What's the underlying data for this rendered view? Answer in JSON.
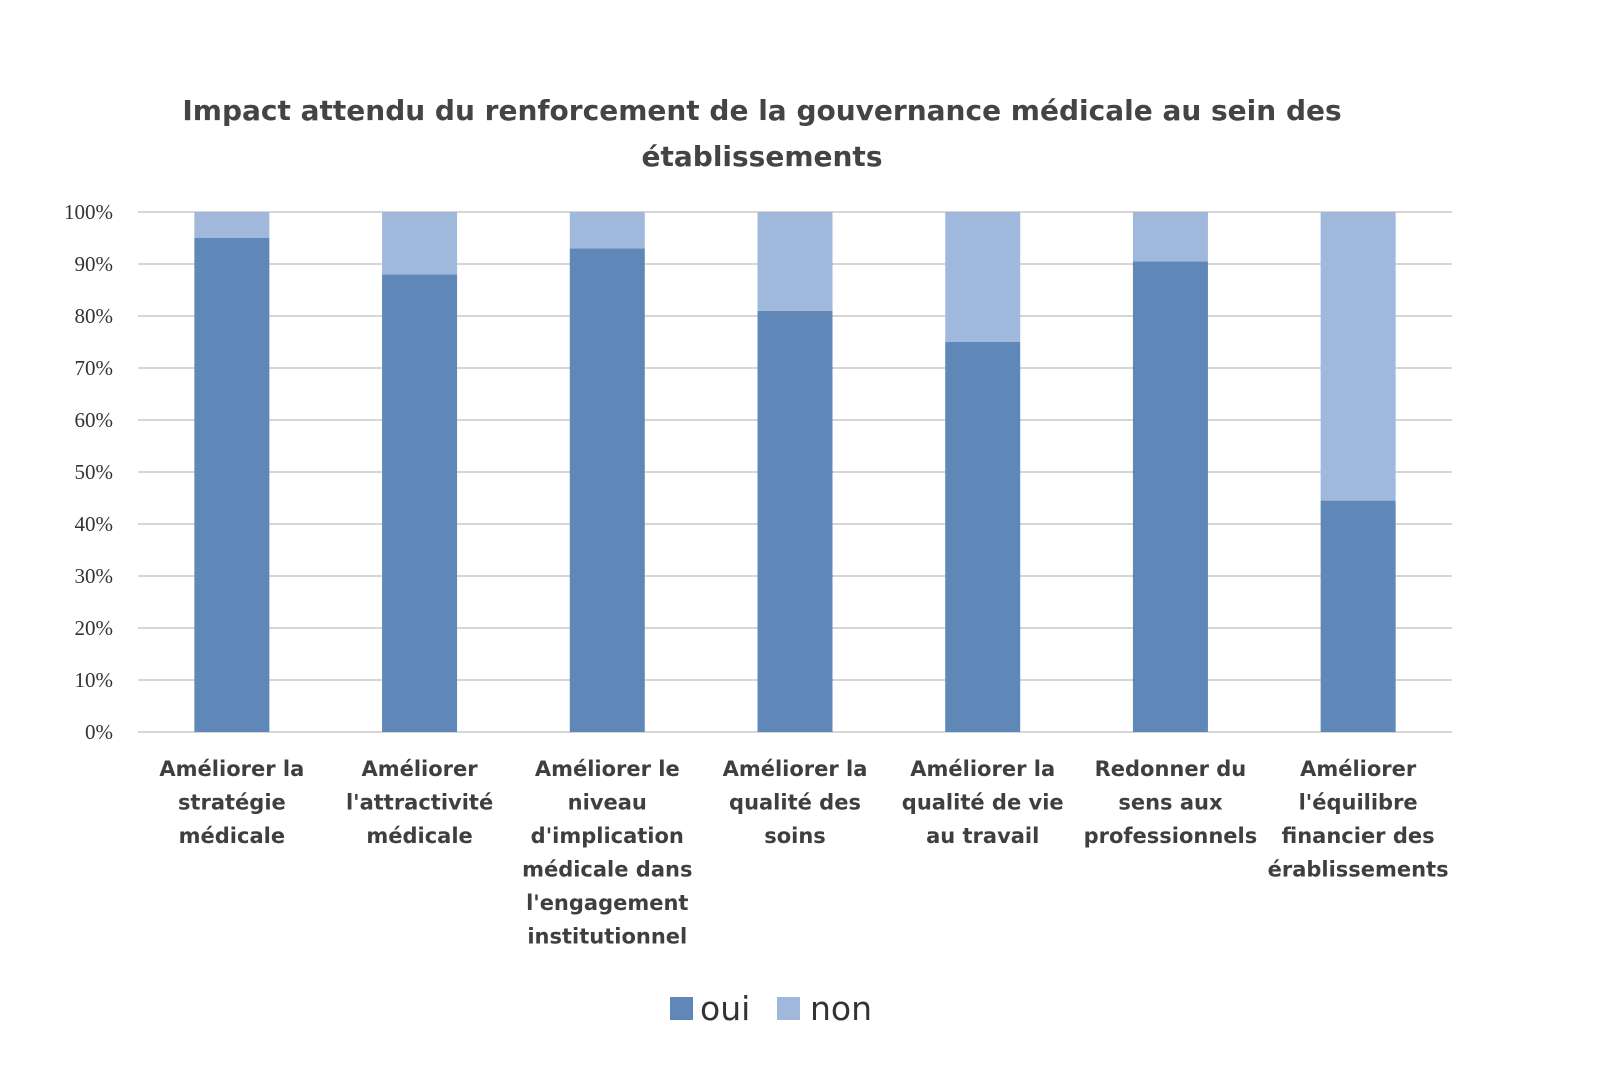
{
  "chart_data": {
    "type": "bar",
    "stacked": true,
    "title": "Impact attendu du renforcement de la gouvernance médicale au sein des établissements",
    "title_lines": [
      "Impact attendu du renforcement de la gouvernance médicale au sein des",
      "établissements"
    ],
    "xlabel": "",
    "ylabel": "",
    "ylim": [
      0,
      100
    ],
    "y_ticks": [
      "0%",
      "10%",
      "20%",
      "30%",
      "40%",
      "50%",
      "60%",
      "70%",
      "80%",
      "90%",
      "100%"
    ],
    "grid": true,
    "legend_position": "bottom",
    "categories": [
      "Améliorer la stratégie médicale",
      "Améliorer l'attractivité médicale",
      "Améliorer le niveau d'implication médicale dans l'engagement institutionnel",
      "Améliorer la qualité des soins",
      "Améliorer la qualité de vie au travail",
      "Redonner du sens aux professionnels",
      "Améliorer l'équilibre financier des érablissements"
    ],
    "category_lines": [
      [
        "Améliorer la",
        "stratégie",
        "médicale"
      ],
      [
        "Améliorer",
        "l'attractivité",
        "médicale"
      ],
      [
        "Améliorer le",
        "niveau",
        "d'implication",
        "médicale dans",
        "l'engagement",
        "institutionnel"
      ],
      [
        "Améliorer la",
        "qualité des",
        "soins"
      ],
      [
        "Améliorer la",
        "qualité de vie",
        "au travail"
      ],
      [
        "Redonner du",
        "sens aux",
        "professionnels"
      ],
      [
        "Améliorer",
        "l'équilibre",
        "financier des",
        "érablissements"
      ]
    ],
    "series": [
      {
        "name": "oui",
        "color": "#5f87b8",
        "values": [
          95,
          88,
          93,
          81,
          75,
          90.5,
          44.5
        ]
      },
      {
        "name": "non",
        "color": "#a0b8dc",
        "values": [
          5,
          12,
          7,
          19,
          25,
          9.5,
          55.5
        ]
      }
    ]
  }
}
